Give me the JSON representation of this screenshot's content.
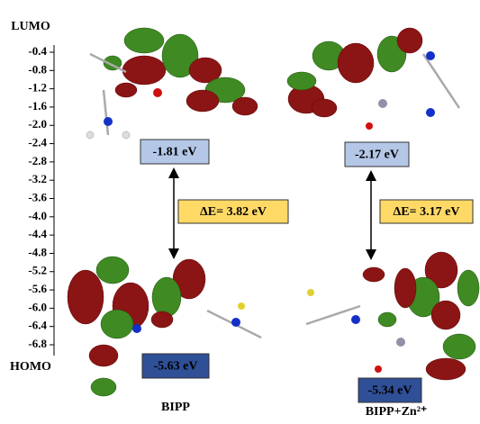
{
  "axis": {
    "top_label": "LUMO",
    "bottom_label": "HOMO",
    "ticks": [
      "-0.4",
      "-0.8",
      "-1.2",
      "-1.6",
      "-2.0",
      "-2.4",
      "-2.8",
      "-3.2",
      "-3.6",
      "-4.0",
      "-4.4",
      "-4.8",
      "-5.2",
      "-5.6",
      "-6.0",
      "-6.4",
      "-6.8"
    ]
  },
  "panels": [
    {
      "lumo": "-1.81 eV",
      "homo": "-5.63 eV",
      "gap": "ΔE= 3.82 eV",
      "label": "BIPP"
    },
    {
      "lumo": "-2.17 eV",
      "homo": "-5.34 eV",
      "gap": "ΔE= 3.17 eV",
      "label": "BIPP+Zn²⁺"
    }
  ]
}
